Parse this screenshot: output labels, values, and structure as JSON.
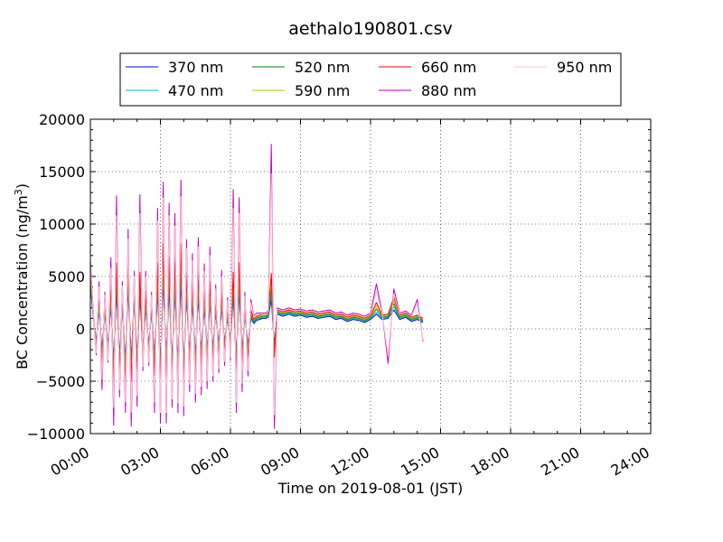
{
  "chart_data": {
    "type": "line",
    "title": "aethalo190801.csv",
    "xlabel": "Time on 2019-08-01 (JST)",
    "ylabel_main": "BC Concentration (ng/m",
    "ylabel_sup": "3",
    "ylabel_close": ")",
    "xlim": [
      0,
      24
    ],
    "ylim": [
      -10000,
      20000
    ],
    "xtick_values": [
      0,
      3,
      6,
      9,
      12,
      15,
      18,
      21,
      24
    ],
    "xtick_labels": [
      "00:00",
      "03:00",
      "06:00",
      "09:00",
      "12:00",
      "15:00",
      "18:00",
      "21:00",
      "24:00"
    ],
    "ytick_values": [
      -10000,
      -5000,
      0,
      5000,
      10000,
      15000,
      20000
    ],
    "ytick_labels": [
      "−10000",
      "−5000",
      "0",
      "5000",
      "10000",
      "15000",
      "20000"
    ],
    "grid": true,
    "legend_position": "top-center",
    "x": [
      0,
      0.12,
      0.25,
      0.37,
      0.5,
      0.62,
      0.75,
      0.88,
      1.0,
      1.12,
      1.25,
      1.37,
      1.5,
      1.62,
      1.75,
      1.88,
      2.0,
      2.12,
      2.25,
      2.37,
      2.5,
      2.62,
      2.75,
      2.88,
      3.0,
      3.12,
      3.25,
      3.37,
      3.5,
      3.62,
      3.75,
      3.88,
      4.0,
      4.12,
      4.25,
      4.37,
      4.5,
      4.62,
      4.75,
      4.88,
      5.0,
      5.12,
      5.25,
      5.37,
      5.5,
      5.62,
      5.75,
      5.88,
      6.0,
      6.12,
      6.25,
      6.37,
      6.5,
      6.62,
      6.75,
      6.88,
      7.0,
      7.12,
      7.25,
      7.37,
      7.5,
      7.62,
      7.75,
      7.88,
      8.0,
      8.12,
      8.25,
      8.5,
      8.75,
      9.0,
      9.25,
      9.5,
      9.75,
      10.0,
      10.25,
      10.5,
      10.75,
      11.0,
      11.25,
      11.5,
      11.75,
      12.0,
      12.25,
      12.5,
      12.75,
      13.0,
      13.25,
      13.5,
      13.75,
      14.0,
      14.25
    ],
    "series": [
      {
        "name": "370 nm",
        "color": "#0000ff",
        "values": [
          4200,
          1200,
          -1200,
          1800,
          -2000,
          1500,
          -1500,
          2200,
          -3000,
          3500,
          -2500,
          2000,
          -3000,
          3800,
          -2800,
          2500,
          -2500,
          3000,
          -1800,
          2000,
          -1500,
          1500,
          -2500,
          3500,
          -3500,
          4500,
          -2800,
          3800,
          -3000,
          3500,
          -3000,
          4500,
          -3200,
          3000,
          -2200,
          2500,
          -2500,
          3000,
          -2000,
          2000,
          -2000,
          2500,
          -1800,
          1500,
          -1500,
          2000,
          -1200,
          1000,
          -1000,
          3000,
          -2500,
          3500,
          -2000,
          1200,
          -1500,
          1000,
          500,
          800,
          900,
          1000,
          1000,
          1100,
          2800,
          -1500,
          1400,
          1300,
          1200,
          1400,
          1200,
          1300,
          1100,
          1200,
          1000,
          1100,
          1200,
          900,
          1000,
          700,
          900,
          800,
          600,
          900,
          1400,
          900,
          1000,
          1800,
          900,
          1100,
          700,
          900,
          600
        ]
      },
      {
        "name": "470 nm",
        "color": "#00bfbf",
        "values": [
          4600,
          1300,
          -1400,
          2200,
          -2400,
          1800,
          -1800,
          2700,
          -3600,
          4200,
          -3000,
          2400,
          -3600,
          4500,
          -3400,
          3000,
          -3000,
          3600,
          -2200,
          2400,
          -1800,
          1800,
          -3000,
          4200,
          -4200,
          5400,
          -3400,
          4600,
          -3600,
          4200,
          -3600,
          5400,
          -3800,
          3600,
          -2600,
          3000,
          -3000,
          3600,
          -2400,
          2400,
          -2400,
          3000,
          -2200,
          1800,
          -1800,
          2400,
          -1400,
          1200,
          -1200,
          3600,
          -3000,
          4200,
          -2400,
          1400,
          -1800,
          1200,
          600,
          900,
          1000,
          1100,
          1100,
          1200,
          3400,
          -1800,
          1500,
          1400,
          1300,
          1500,
          1300,
          1400,
          1200,
          1300,
          1100,
          1200,
          1300,
          1000,
          1100,
          800,
          1000,
          900,
          700,
          1000,
          1600,
          1000,
          1100,
          2100,
          1000,
          1200,
          800,
          1000,
          700
        ]
      },
      {
        "name": "520 nm",
        "color": "#008000",
        "values": [
          5000,
          1400,
          -1600,
          2600,
          -2800,
          2100,
          -2100,
          3200,
          -4200,
          4900,
          -3500,
          2800,
          -4200,
          5300,
          -3900,
          3500,
          -3500,
          4200,
          -2500,
          2800,
          -2100,
          2100,
          -3500,
          4900,
          -4900,
          6300,
          -3900,
          5300,
          -4200,
          4900,
          -4200,
          6300,
          -4500,
          4200,
          -3100,
          3500,
          -3500,
          4200,
          -2800,
          2800,
          -2800,
          3500,
          -2500,
          2100,
          -2100,
          2800,
          -1700,
          1400,
          -1400,
          4200,
          -3500,
          4900,
          -2800,
          1700,
          -2100,
          1400,
          700,
          1000,
          1100,
          1200,
          1200,
          1300,
          4000,
          -2100,
          1600,
          1500,
          1400,
          1600,
          1400,
          1500,
          1300,
          1400,
          1200,
          1300,
          1400,
          1100,
          1200,
          900,
          1100,
          1000,
          800,
          1100,
          1900,
          1100,
          1200,
          2400,
          1100,
          1300,
          900,
          1100,
          800
        ]
      },
      {
        "name": "590 nm",
        "color": "#bfbf00",
        "values": [
          5400,
          1500,
          -1800,
          3000,
          -3200,
          2400,
          -2400,
          3700,
          -4800,
          5600,
          -4000,
          3200,
          -4800,
          6100,
          -4500,
          4000,
          -4000,
          4800,
          -2900,
          3200,
          -2400,
          2400,
          -4000,
          5600,
          -5600,
          7200,
          -4500,
          6100,
          -4800,
          5600,
          -4800,
          7200,
          -5100,
          4800,
          -3500,
          4000,
          -4000,
          4800,
          -3200,
          3200,
          -3200,
          4000,
          -2900,
          2400,
          -2400,
          3200,
          -1900,
          1600,
          -1600,
          4800,
          -4000,
          5600,
          -3200,
          1900,
          -2400,
          1600,
          800,
          1100,
          1200,
          1300,
          1300,
          1400,
          4600,
          -2400,
          1700,
          1600,
          1500,
          1700,
          1500,
          1600,
          1400,
          1500,
          1300,
          1400,
          1500,
          1200,
          1300,
          1000,
          1200,
          1100,
          900,
          1200,
          2200,
          1200,
          1300,
          2700,
          1200,
          1400,
          1000,
          1200,
          900
        ]
      },
      {
        "name": "660 nm",
        "color": "#ff0000",
        "values": [
          5800,
          1600,
          -2000,
          3400,
          -3600,
          2700,
          -2700,
          4200,
          -5400,
          6300,
          -4500,
          3600,
          -5400,
          6900,
          -5100,
          4500,
          -4500,
          5400,
          -3200,
          3600,
          -2700,
          2700,
          -4500,
          6300,
          -6300,
          8100,
          -5100,
          6900,
          -5400,
          6300,
          -5400,
          8100,
          -5700,
          5400,
          -3900,
          4500,
          -4500,
          5400,
          -3600,
          3600,
          -3600,
          4500,
          -3200,
          2700,
          -2700,
          3600,
          -2100,
          1800,
          -1800,
          5400,
          -4500,
          6300,
          -3600,
          2100,
          -2700,
          1800,
          900,
          1200,
          1300,
          1400,
          1400,
          1500,
          5300,
          -2700,
          1800,
          1700,
          1600,
          1800,
          1600,
          1700,
          1500,
          1600,
          1400,
          1500,
          1600,
          1300,
          1400,
          1100,
          1300,
          1200,
          1000,
          1300,
          2500,
          1300,
          1400,
          3000,
          1300,
          1500,
          1100,
          1300,
          1000
        ]
      },
      {
        "name": "880 nm",
        "color": "#bf00bf",
        "values": [
          6500,
          1800,
          -2500,
          4500,
          -5800,
          3500,
          -3200,
          6800,
          -9200,
          12700,
          -6500,
          4500,
          -8000,
          9500,
          -9300,
          5500,
          -7400,
          12800,
          -4000,
          5500,
          -3500,
          3500,
          -8000,
          11500,
          -9000,
          14000,
          -9000,
          12000,
          -7500,
          11000,
          -8000,
          14200,
          -8300,
          8500,
          -6000,
          7200,
          -7000,
          8700,
          -6300,
          6200,
          -5700,
          7800,
          -5000,
          4200,
          -4200,
          5600,
          -3500,
          3000,
          -3000,
          13300,
          -8000,
          12500,
          -6000,
          3500,
          -4500,
          2800,
          1200,
          1500,
          1500,
          1500,
          1500,
          1700,
          17600,
          -9500,
          2000,
          1900,
          1800,
          2000,
          1800,
          1900,
          1700,
          1800,
          1600,
          1700,
          1800,
          1500,
          1600,
          1300,
          1500,
          1400,
          1200,
          1500,
          4300,
          1500,
          -3300,
          3800,
          1500,
          1700,
          1300,
          2800,
          -1200
        ]
      },
      {
        "name": "950 nm",
        "color": "#ffc0cb",
        "values": [
          6200,
          1700,
          -2300,
          4000,
          -4800,
          3200,
          -3000,
          5800,
          -7500,
          10800,
          -5800,
          4100,
          -7000,
          8600,
          -8000,
          5000,
          -6400,
          11000,
          -3600,
          5000,
          -3200,
          3200,
          -7000,
          10300,
          -8000,
          12500,
          -8000,
          10800,
          -6700,
          9800,
          -7100,
          12600,
          -7400,
          7700,
          -5300,
          6500,
          -6200,
          7800,
          -5500,
          5500,
          -5000,
          7000,
          -4500,
          3800,
          -3800,
          5000,
          -3100,
          2700,
          -2700,
          11500,
          -7000,
          11000,
          -5200,
          3100,
          -4000,
          2500,
          1100,
          1400,
          1400,
          1400,
          1400,
          1600,
          14800,
          -8200,
          1900,
          1800,
          1700,
          1900,
          1700,
          1800,
          1600,
          1700,
          1500,
          1600,
          1700,
          1400,
          1500,
          1200,
          1400,
          1300,
          1100,
          1400,
          3600,
          1400,
          -2600,
          3300,
          1400,
          1600,
          1200,
          2400,
          -1100
        ]
      }
    ]
  }
}
